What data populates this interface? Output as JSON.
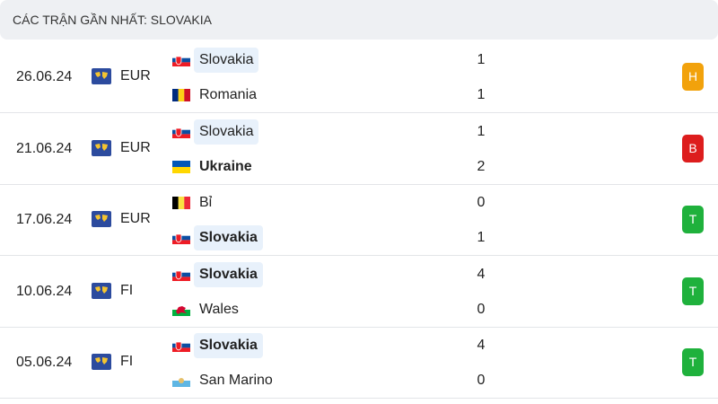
{
  "header": {
    "title": "CÁC TRẬN GẦN NHẤT: SLOVAKIA"
  },
  "matches": [
    {
      "date": "26.06.24",
      "competition": "EUR",
      "home": {
        "name": "Slovakia",
        "score": 1
      },
      "away": {
        "name": "Romania",
        "score": 1
      },
      "result": "H"
    },
    {
      "date": "21.06.24",
      "competition": "EUR",
      "home": {
        "name": "Slovakia",
        "score": 1
      },
      "away": {
        "name": "Ukraine",
        "score": 2
      },
      "result": "B"
    },
    {
      "date": "17.06.24",
      "competition": "EUR",
      "home": {
        "name": "Bỉ",
        "score": 0
      },
      "away": {
        "name": "Slovakia",
        "score": 1
      },
      "result": "T"
    },
    {
      "date": "10.06.24",
      "competition": "FI",
      "home": {
        "name": "Slovakia",
        "score": 4
      },
      "away": {
        "name": "Wales",
        "score": 0
      },
      "result": "T"
    },
    {
      "date": "05.06.24",
      "competition": "FI",
      "home": {
        "name": "Slovakia",
        "score": 4
      },
      "away": {
        "name": "San Marino",
        "score": 0
      },
      "result": "T"
    }
  ]
}
